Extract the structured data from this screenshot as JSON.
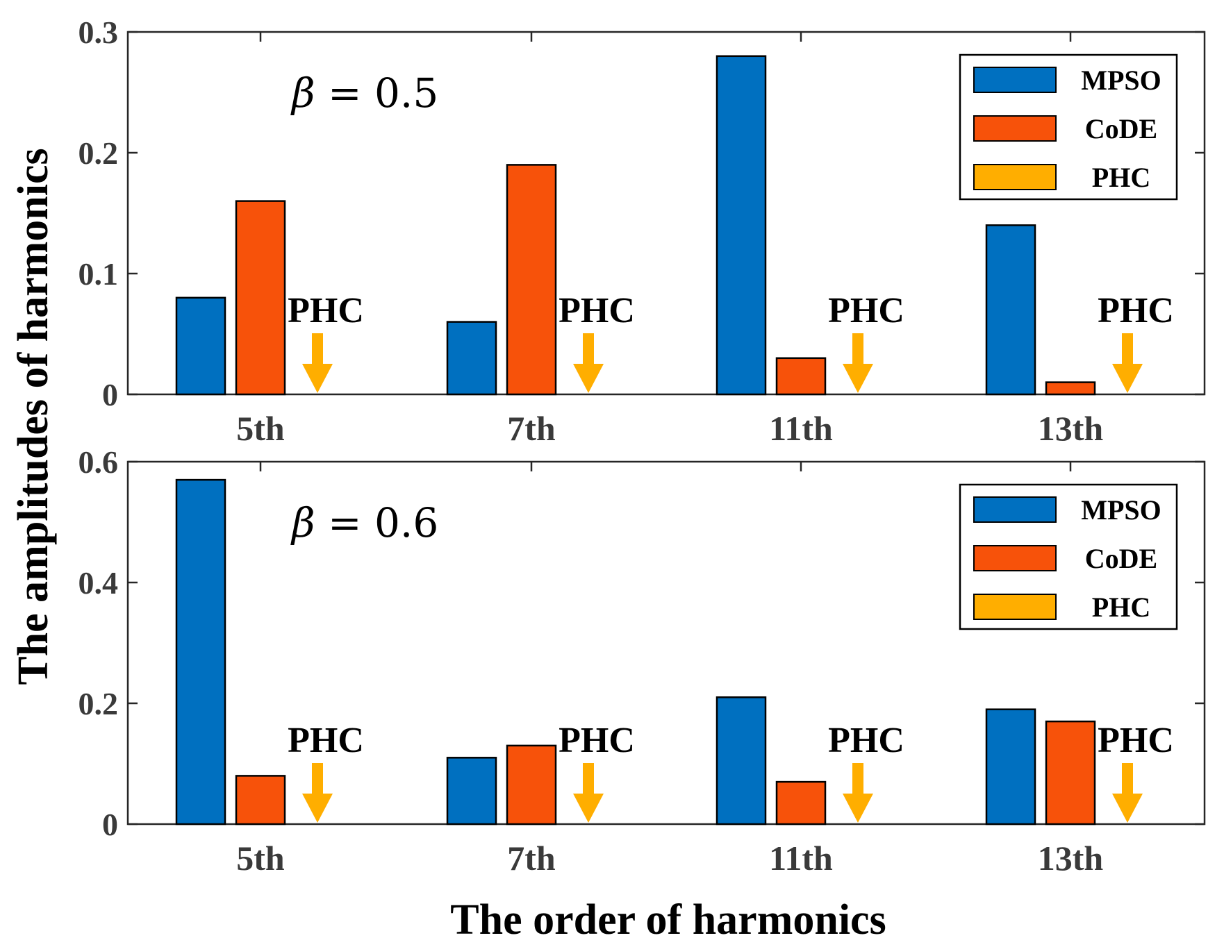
{
  "chart_data": [
    {
      "type": "bar",
      "annotation": "β = 0.5",
      "categories": [
        "5th",
        "7th",
        "11th",
        "13th"
      ],
      "series": [
        {
          "name": "MPSO",
          "values": [
            0.08,
            0.06,
            0.28,
            0.14
          ],
          "color": "#0070C0"
        },
        {
          "name": "CoDE",
          "values": [
            0.16,
            0.19,
            0.03,
            0.01
          ],
          "color": "#F7520A"
        },
        {
          "name": "PHC",
          "values": [
            0,
            0,
            0,
            0
          ],
          "color": "#FFAE00"
        }
      ],
      "ylim": [
        0,
        0.3
      ],
      "yticks": [
        "0",
        "0.1",
        "0.2",
        "0.3"
      ],
      "bar_labels": [
        "PHC",
        "PHC",
        "PHC",
        "PHC"
      ],
      "legend_position": "top-right"
    },
    {
      "type": "bar",
      "annotation": "β = 0.6",
      "categories": [
        "5th",
        "7th",
        "11th",
        "13th"
      ],
      "series": [
        {
          "name": "MPSO",
          "values": [
            0.57,
            0.11,
            0.21,
            0.19
          ],
          "color": "#0070C0"
        },
        {
          "name": "CoDE",
          "values": [
            0.08,
            0.13,
            0.07,
            0.17
          ],
          "color": "#F7520A"
        },
        {
          "name": "PHC",
          "values": [
            0,
            0,
            0,
            0
          ],
          "color": "#FFAE00"
        }
      ],
      "ylim": [
        0,
        0.6
      ],
      "yticks": [
        "0",
        "0.2",
        "0.4",
        "0.6"
      ],
      "bar_labels": [
        "PHC",
        "PHC",
        "PHC",
        "PHC"
      ],
      "legend_position": "top-right"
    }
  ],
  "xlabel": "The order of harmonics",
  "ylabel": "The amplitudes of harmonics"
}
